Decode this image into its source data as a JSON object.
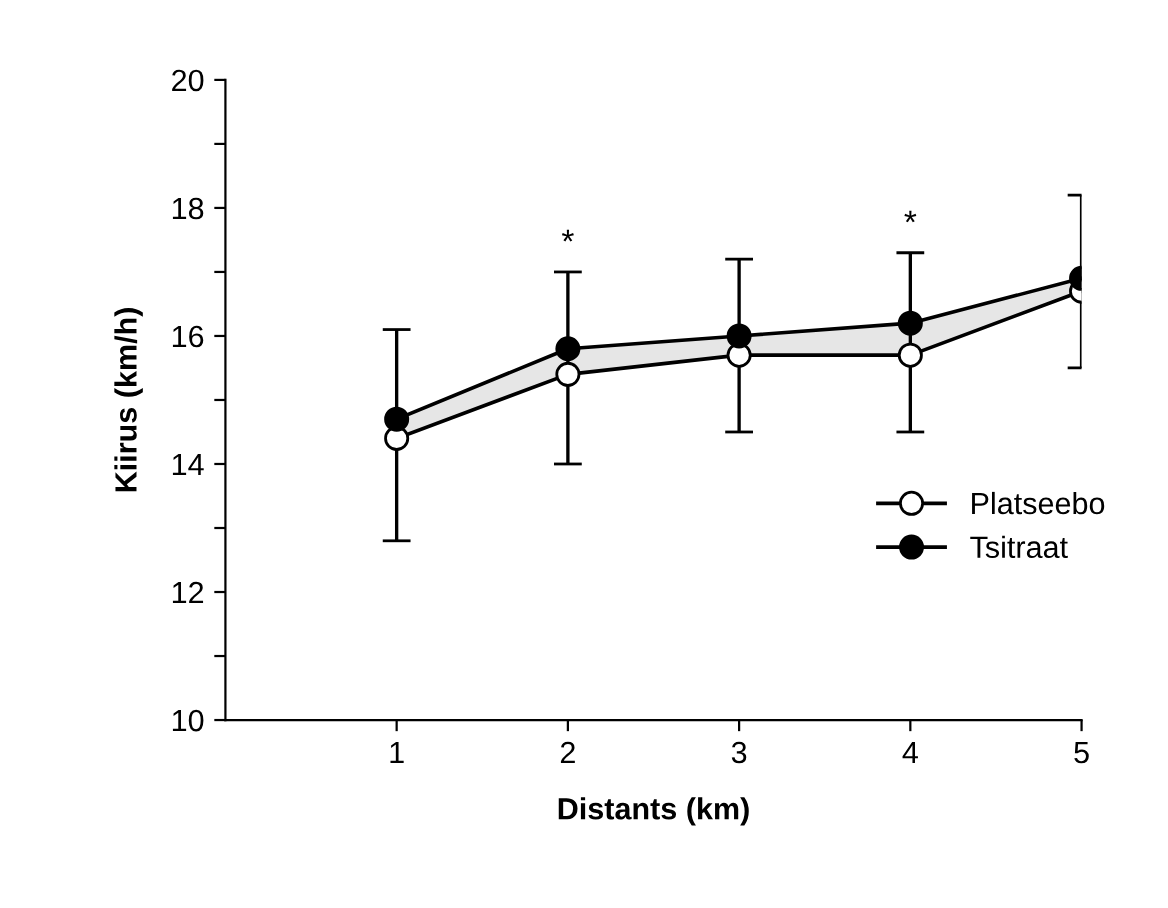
{
  "chart_data": {
    "type": "line",
    "xlabel": "Distants (km)",
    "ylabel": "Kiirus (km/h)",
    "x": [
      1,
      2,
      3,
      4,
      5
    ],
    "series": [
      {
        "name": "Platseebo",
        "color": "#ffffff",
        "values": [
          14.4,
          15.4,
          15.7,
          15.7,
          16.7
        ],
        "errors": [
          [
            12.8,
            16.1
          ],
          [
            14.0,
            17.0
          ],
          [
            14.5,
            17.2
          ],
          [
            14.5,
            17.3
          ],
          [
            15.5,
            18.2
          ]
        ]
      },
      {
        "name": "Tsitraat",
        "color": "#000000",
        "values": [
          14.7,
          15.8,
          16.0,
          16.2,
          16.9
        ],
        "lower": [
          14.4,
          15.4,
          15.7,
          15.7,
          16.7
        ],
        "upper": [
          14.7,
          15.8,
          16.0,
          16.2,
          16.9
        ]
      }
    ],
    "xlim": [
      0,
      5
    ],
    "xticks": [
      1,
      2,
      3,
      4,
      5
    ],
    "ylim": [
      10,
      20
    ],
    "yticks": [
      10,
      {
        "value": 11,
        "label": null
      },
      12,
      {
        "value": 13,
        "label": null
      },
      14,
      {
        "value": 15,
        "label": null
      },
      16,
      {
        "value": 17,
        "label": null
      },
      18,
      {
        "value": 19,
        "label": null
      },
      20
    ],
    "annotations": [
      {
        "text": "*",
        "x": 2,
        "y": 17.0
      },
      {
        "text": "*",
        "x": 4,
        "y": 17.3
      }
    ],
    "marker": "circle",
    "line_style": "solid",
    "grid": false,
    "legend": "right"
  }
}
